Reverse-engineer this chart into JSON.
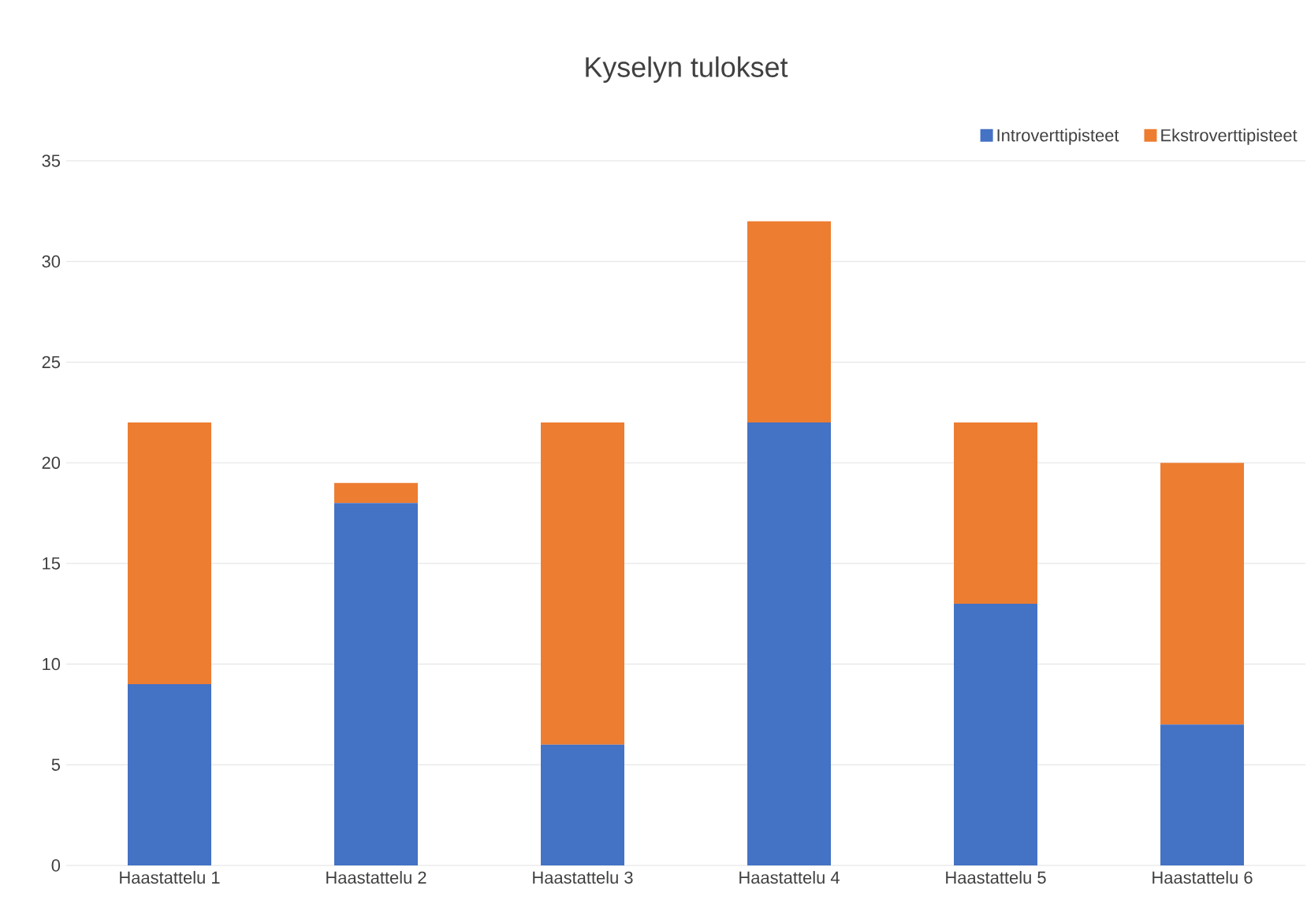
{
  "chart_data": {
    "type": "bar",
    "title": "Kyselyn tulokset",
    "stacked": true,
    "categories": [
      "Haastattelu 1",
      "Haastattelu 2",
      "Haastattelu 3",
      "Haastattelu 4",
      "Haastattelu 5",
      "Haastattelu 6"
    ],
    "series": [
      {
        "name": "Introverttipisteet",
        "color": "#4472c4",
        "values": [
          9,
          18,
          6,
          22,
          13,
          7
        ]
      },
      {
        "name": "Ekstroverttipisteet",
        "color": "#ed7d31",
        "values": [
          13,
          1,
          16,
          10,
          9,
          13
        ]
      }
    ],
    "ylim": [
      0,
      35
    ],
    "yticks": [
      0,
      5,
      10,
      15,
      20,
      25,
      30,
      35
    ],
    "grid": "y",
    "legend": "top right"
  }
}
